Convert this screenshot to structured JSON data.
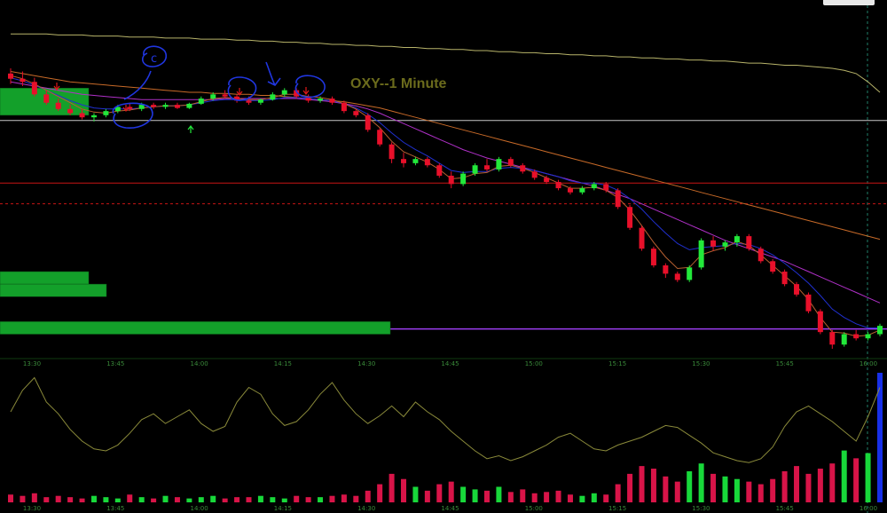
{
  "chart_data": [
    {
      "type": "candlestick",
      "title": "OXY--1 Minute",
      "x_ticks": [
        "13:30",
        "13:45",
        "14:00",
        "14:15",
        "14:30",
        "14:45",
        "15:00",
        "15:15",
        "15:30",
        "15:45",
        "16:00"
      ],
      "up_color": "#22e83a",
      "down_color": "#e8102a",
      "horizontal_levels": [
        {
          "color": "#c8c8c8",
          "price": 49.55
        },
        {
          "color": "#c81414",
          "price": 48.95
        },
        {
          "color": "#c81414",
          "price": 48.75
        },
        {
          "color": "#9b3df0",
          "price": 47.55
        }
      ],
      "volume_profile_color": "#13a02a",
      "ohlc": [
        [
          50.0,
          50.05,
          49.9,
          49.95
        ],
        [
          49.95,
          50.02,
          49.88,
          49.92
        ],
        [
          49.92,
          49.96,
          49.78,
          49.8
        ],
        [
          49.8,
          49.84,
          49.7,
          49.72
        ],
        [
          49.72,
          49.76,
          49.64,
          49.66
        ],
        [
          49.66,
          49.7,
          49.6,
          49.62
        ],
        [
          49.62,
          49.66,
          49.56,
          49.58
        ],
        [
          49.58,
          49.62,
          49.54,
          49.6
        ],
        [
          49.6,
          49.66,
          49.58,
          49.64
        ],
        [
          49.64,
          49.7,
          49.62,
          49.68
        ],
        [
          49.68,
          49.72,
          49.64,
          49.66
        ],
        [
          49.66,
          49.72,
          49.64,
          49.7
        ],
        [
          49.7,
          49.72,
          49.66,
          49.68
        ],
        [
          49.68,
          49.72,
          49.66,
          49.7
        ],
        [
          49.7,
          49.72,
          49.66,
          49.67
        ],
        [
          49.67,
          49.72,
          49.66,
          49.71
        ],
        [
          49.71,
          49.78,
          49.7,
          49.76
        ],
        [
          49.76,
          49.82,
          49.74,
          49.8
        ],
        [
          49.8,
          49.84,
          49.76,
          49.78
        ],
        [
          49.78,
          49.8,
          49.72,
          49.74
        ],
        [
          49.74,
          49.78,
          49.7,
          49.72
        ],
        [
          49.72,
          49.76,
          49.7,
          49.75
        ],
        [
          49.75,
          49.82,
          49.74,
          49.8
        ],
        [
          49.8,
          49.86,
          49.78,
          49.84
        ],
        [
          49.84,
          49.86,
          49.76,
          49.78
        ],
        [
          49.78,
          49.8,
          49.72,
          49.74
        ],
        [
          49.74,
          49.78,
          49.72,
          49.76
        ],
        [
          49.76,
          49.78,
          49.7,
          49.72
        ],
        [
          49.72,
          49.74,
          49.62,
          49.64
        ],
        [
          49.64,
          49.66,
          49.58,
          49.6
        ],
        [
          49.6,
          49.62,
          49.44,
          49.46
        ],
        [
          49.46,
          49.48,
          49.3,
          49.32
        ],
        [
          49.32,
          49.34,
          49.14,
          49.18
        ],
        [
          49.18,
          49.24,
          49.1,
          49.14
        ],
        [
          49.14,
          49.2,
          49.12,
          49.18
        ],
        [
          49.18,
          49.2,
          49.1,
          49.12
        ],
        [
          49.12,
          49.14,
          49.0,
          49.02
        ],
        [
          49.02,
          49.06,
          48.9,
          48.94
        ],
        [
          48.94,
          49.06,
          48.92,
          49.04
        ],
        [
          49.04,
          49.14,
          49.02,
          49.12
        ],
        [
          49.12,
          49.18,
          49.06,
          49.08
        ],
        [
          49.08,
          49.2,
          49.06,
          49.18
        ],
        [
          49.18,
          49.2,
          49.1,
          49.12
        ],
        [
          49.12,
          49.14,
          49.04,
          49.06
        ],
        [
          49.06,
          49.08,
          48.98,
          49.0
        ],
        [
          49.0,
          49.02,
          48.94,
          48.96
        ],
        [
          48.96,
          48.98,
          48.88,
          48.9
        ],
        [
          48.9,
          48.92,
          48.84,
          48.86
        ],
        [
          48.86,
          48.92,
          48.84,
          48.9
        ],
        [
          48.9,
          48.96,
          48.88,
          48.94
        ],
        [
          48.94,
          48.96,
          48.86,
          48.88
        ],
        [
          48.88,
          48.9,
          48.7,
          48.72
        ],
        [
          48.72,
          48.74,
          48.5,
          48.52
        ],
        [
          48.52,
          48.54,
          48.3,
          48.32
        ],
        [
          48.32,
          48.34,
          48.14,
          48.16
        ],
        [
          48.16,
          48.18,
          48.04,
          48.08
        ],
        [
          48.08,
          48.1,
          48.0,
          48.02
        ],
        [
          48.02,
          48.16,
          48.0,
          48.14
        ],
        [
          48.14,
          48.42,
          48.12,
          48.4
        ],
        [
          48.4,
          48.44,
          48.3,
          48.34
        ],
        [
          48.34,
          48.4,
          48.3,
          48.38
        ],
        [
          48.38,
          48.46,
          48.34,
          48.44
        ],
        [
          48.44,
          48.46,
          48.3,
          48.32
        ],
        [
          48.32,
          48.34,
          48.18,
          48.2
        ],
        [
          48.2,
          48.22,
          48.08,
          48.1
        ],
        [
          48.1,
          48.12,
          47.96,
          47.98
        ],
        [
          47.98,
          48.0,
          47.86,
          47.88
        ],
        [
          47.88,
          47.9,
          47.7,
          47.72
        ],
        [
          47.72,
          47.74,
          47.5,
          47.52
        ],
        [
          47.52,
          47.54,
          47.36,
          47.4
        ],
        [
          47.4,
          47.52,
          47.38,
          47.5
        ],
        [
          47.5,
          47.54,
          47.44,
          47.46
        ],
        [
          47.46,
          47.52,
          47.44,
          47.5
        ],
        [
          47.5,
          47.6,
          47.48,
          47.58
        ]
      ],
      "moving_averages": [
        {
          "color": "#b8b46a",
          "values": [
            50.38,
            50.38,
            50.38,
            50.38,
            50.37,
            50.37,
            50.37,
            50.36,
            50.36,
            50.36,
            50.35,
            50.35,
            50.35,
            50.34,
            50.34,
            50.34,
            50.33,
            50.33,
            50.33,
            50.32,
            50.32,
            50.31,
            50.31,
            50.3,
            50.3,
            50.29,
            50.29,
            50.28,
            50.28,
            50.27,
            50.27,
            50.26,
            50.26,
            50.25,
            50.25,
            50.24,
            50.24,
            50.23,
            50.23,
            50.22,
            50.22,
            50.21,
            50.21,
            50.2,
            50.2,
            50.19,
            50.19,
            50.18,
            50.18,
            50.17,
            50.17,
            50.16,
            50.16,
            50.15,
            50.15,
            50.14,
            50.14,
            50.13,
            50.13,
            50.12,
            50.12,
            50.11,
            50.1,
            50.1,
            50.09,
            50.08,
            50.08,
            50.07,
            50.06,
            50.05,
            50.03,
            50.0,
            49.92,
            49.82
          ]
        },
        {
          "color": "#c86a28",
          "values": [
            50.02,
            50.0,
            49.98,
            49.96,
            49.94,
            49.92,
            49.91,
            49.9,
            49.89,
            49.88,
            49.87,
            49.86,
            49.85,
            49.84,
            49.83,
            49.82,
            49.82,
            49.81,
            49.81,
            49.8,
            49.8,
            49.79,
            49.79,
            49.78,
            49.77,
            49.76,
            49.75,
            49.74,
            49.73,
            49.71,
            49.69,
            49.67,
            49.64,
            49.61,
            49.58,
            49.55,
            49.52,
            49.49,
            49.46,
            49.43,
            49.4,
            49.37,
            49.34,
            49.31,
            49.28,
            49.25,
            49.22,
            49.19,
            49.16,
            49.13,
            49.1,
            49.07,
            49.04,
            49.01,
            48.98,
            48.95,
            48.92,
            48.89,
            48.86,
            48.83,
            48.8,
            48.77,
            48.74,
            48.71,
            48.68,
            48.65,
            48.62,
            48.59,
            48.56,
            48.53,
            48.5,
            48.47,
            48.44,
            48.41
          ]
        },
        {
          "color": "#b030c8",
          "values": [
            49.92,
            49.9,
            49.88,
            49.86,
            49.84,
            49.82,
            49.8,
            49.79,
            49.78,
            49.77,
            49.76,
            49.75,
            49.75,
            49.75,
            49.75,
            49.75,
            49.75,
            49.75,
            49.76,
            49.76,
            49.76,
            49.76,
            49.76,
            49.76,
            49.76,
            49.75,
            49.74,
            49.73,
            49.71,
            49.69,
            49.66,
            49.62,
            49.57,
            49.52,
            49.47,
            49.42,
            49.37,
            49.32,
            49.27,
            49.23,
            49.19,
            49.16,
            49.13,
            49.1,
            49.07,
            49.04,
            49.01,
            48.98,
            48.95,
            48.92,
            48.88,
            48.84,
            48.8,
            48.75,
            48.7,
            48.65,
            48.6,
            48.55,
            48.5,
            48.45,
            48.4,
            48.36,
            48.32,
            48.28,
            48.24,
            48.2,
            48.15,
            48.1,
            48.05,
            48.0,
            47.95,
            47.9,
            47.85,
            47.8
          ]
        },
        {
          "color": "#2030d0",
          "values": [
            49.96,
            49.93,
            49.89,
            49.84,
            49.79,
            49.74,
            49.7,
            49.67,
            49.66,
            49.66,
            49.66,
            49.67,
            49.68,
            49.69,
            49.69,
            49.7,
            49.72,
            49.74,
            49.75,
            49.75,
            49.74,
            49.74,
            49.75,
            49.77,
            49.77,
            49.76,
            49.75,
            49.74,
            49.71,
            49.67,
            49.61,
            49.53,
            49.43,
            49.34,
            49.27,
            49.21,
            49.14,
            49.07,
            49.05,
            49.06,
            49.06,
            49.09,
            49.1,
            49.09,
            49.07,
            49.04,
            49.01,
            48.97,
            48.95,
            48.95,
            48.93,
            48.88,
            48.8,
            48.7,
            48.58,
            48.47,
            48.37,
            48.31,
            48.33,
            48.34,
            48.35,
            48.37,
            48.36,
            48.32,
            48.26,
            48.18,
            48.09,
            47.99,
            47.87,
            47.74,
            47.66,
            47.6,
            47.56,
            47.56
          ]
        },
        {
          "color": "#b86030",
          "values": [
            49.98,
            49.95,
            49.9,
            49.84,
            49.78,
            49.72,
            49.66,
            49.63,
            49.62,
            49.64,
            49.65,
            49.67,
            49.68,
            49.69,
            49.69,
            49.7,
            49.73,
            49.76,
            49.77,
            49.76,
            49.75,
            49.75,
            49.77,
            49.8,
            49.8,
            49.78,
            49.77,
            49.75,
            49.71,
            49.66,
            49.58,
            49.48,
            49.35,
            49.25,
            49.2,
            49.15,
            49.08,
            48.99,
            49.0,
            49.04,
            49.05,
            49.11,
            49.12,
            49.09,
            49.05,
            49.0,
            48.95,
            48.9,
            48.9,
            48.91,
            48.88,
            48.81,
            48.69,
            48.54,
            48.38,
            48.24,
            48.13,
            48.14,
            48.26,
            48.3,
            48.33,
            48.39,
            48.35,
            48.26,
            48.16,
            48.06,
            47.96,
            47.83,
            47.66,
            47.52,
            47.51,
            47.48,
            47.49,
            47.54
          ]
        }
      ]
    },
    {
      "type": "bar+line",
      "x_ticks": [
        "13:30",
        "13:45",
        "14:00",
        "14:15",
        "14:30",
        "14:45",
        "15:00",
        "15:15",
        "15:30",
        "15:45",
        "16:00"
      ],
      "volume_colors": {
        "up": "#18d83a",
        "down": "#d81448",
        "spike": "#1830e8"
      },
      "volume": [
        6,
        5,
        7,
        4,
        5,
        4,
        3,
        5,
        4,
        3,
        6,
        4,
        3,
        5,
        4,
        3,
        4,
        5,
        3,
        4,
        4,
        5,
        4,
        3,
        5,
        4,
        4,
        5,
        6,
        5,
        9,
        14,
        22,
        18,
        12,
        9,
        14,
        16,
        12,
        10,
        9,
        12,
        8,
        10,
        7,
        8,
        9,
        6,
        5,
        7,
        6,
        14,
        22,
        28,
        26,
        20,
        16,
        24,
        30,
        22,
        20,
        18,
        16,
        14,
        18,
        24,
        28,
        22,
        26,
        30,
        40,
        34,
        38,
        100
      ],
      "oscillator": [
        60,
        82,
        95,
        70,
        58,
        42,
        30,
        22,
        20,
        26,
        38,
        52,
        58,
        48,
        55,
        62,
        48,
        40,
        45,
        70,
        85,
        78,
        58,
        46,
        50,
        62,
        78,
        90,
        72,
        58,
        48,
        56,
        66,
        55,
        70,
        60,
        52,
        40,
        30,
        20,
        12,
        15,
        10,
        14,
        20,
        26,
        34,
        38,
        30,
        22,
        20,
        26,
        30,
        34,
        40,
        46,
        44,
        36,
        28,
        18,
        14,
        10,
        8,
        12,
        24,
        45,
        60,
        66,
        58,
        50,
        40,
        30,
        55,
        85
      ]
    }
  ]
}
